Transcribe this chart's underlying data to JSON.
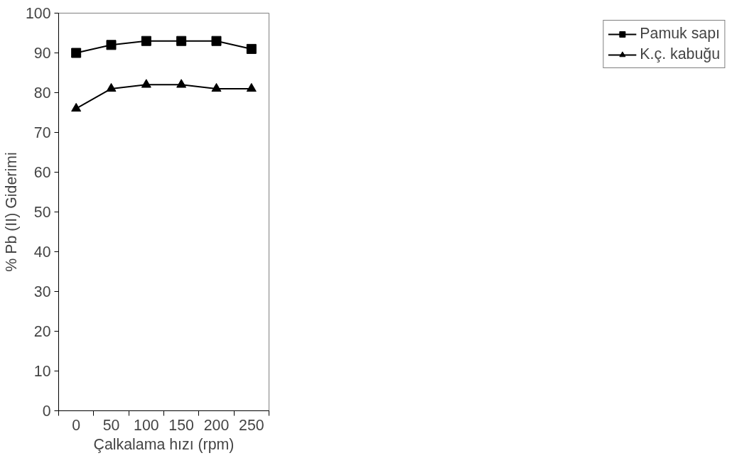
{
  "chart_data": {
    "type": "line",
    "xlabel": "Çalkalama hızı (rpm)",
    "ylabel": "% Pb (II) Giderimi",
    "categories": [
      "0",
      "50",
      "100",
      "150",
      "200",
      "250"
    ],
    "series": [
      {
        "name": "Pamuk sapı",
        "color": "#000000",
        "marker": "square",
        "values": [
          90,
          92,
          93,
          93,
          93,
          91
        ]
      },
      {
        "name": "K.ç. kabuğu",
        "color": "#000000",
        "marker": "triangle",
        "values": [
          76,
          81,
          82,
          82,
          81,
          81
        ]
      }
    ],
    "ylim": [
      0,
      100
    ],
    "yticks": [
      0,
      10,
      20,
      30,
      40,
      50,
      60,
      70,
      80,
      90,
      100
    ],
    "grid": false,
    "legend": "right",
    "line_style": "solid"
  }
}
